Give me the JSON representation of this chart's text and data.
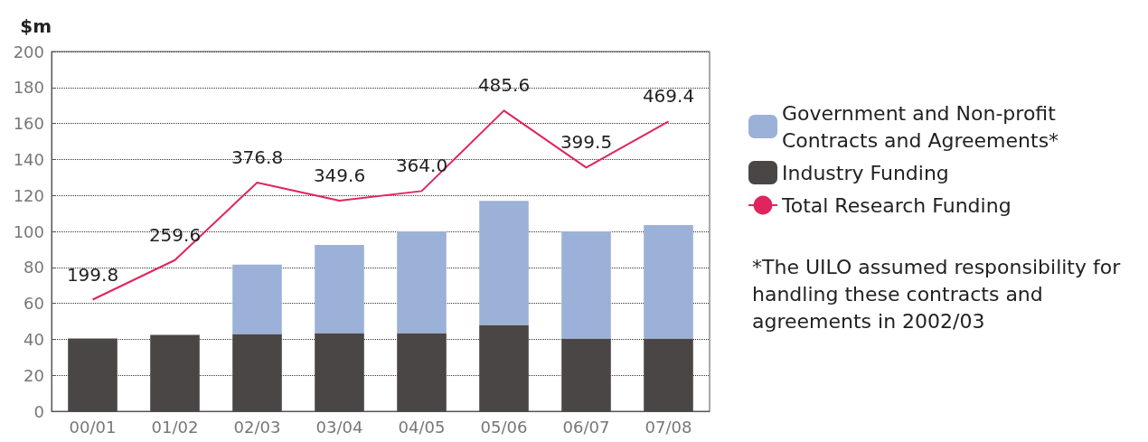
{
  "chart_data": {
    "type": "bar",
    "ylabel": "$m",
    "categories": [
      "00/01",
      "01/02",
      "02/03",
      "03/04",
      "04/05",
      "05/06",
      "06/07",
      "07/08"
    ],
    "stacked": true,
    "ylim": [
      0,
      200
    ],
    "yticks": [
      0,
      20,
      40,
      60,
      80,
      100,
      120,
      140,
      160,
      180,
      200
    ],
    "y2lim": [
      31,
      575
    ],
    "grid": "y",
    "legend": "right",
    "marker": "none",
    "series": [
      {
        "name": "Industry Funding",
        "color": "#4a4645",
        "values": [
          40.5,
          42.5,
          43,
          43.5,
          43.5,
          48,
          40.5,
          40.5
        ]
      },
      {
        "name": "Government and Non-profit Contracts and Agreements*",
        "color": "#9bb1d7",
        "values": [
          0,
          0,
          38.5,
          49,
          56.5,
          69,
          59.5,
          63
        ]
      },
      {
        "name": "Total Research Funding",
        "type": "line",
        "axis": "y2",
        "color": "#e0245e",
        "values": [
          199.8,
          259.6,
          376.8,
          349.6,
          364.0,
          485.6,
          399.5,
          469.4
        ],
        "value_labels": [
          "199.8",
          "259.6",
          "376.8",
          "349.6",
          "364.0",
          "485.6",
          "399.5",
          "469.4"
        ]
      }
    ],
    "annotations": [
      "*The UILO assumed responsibility for handling these contracts and agreements in 2002/03"
    ]
  }
}
